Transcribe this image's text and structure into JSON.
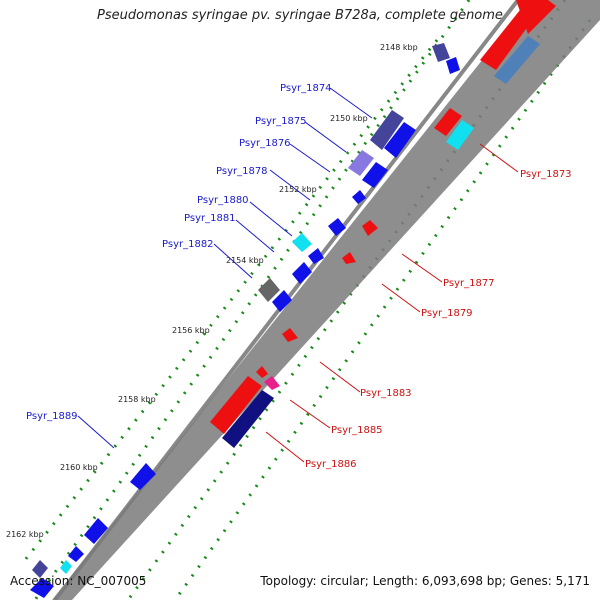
{
  "title": "Pseudomonas syringae pv. syringae B728a, complete genome",
  "footer": {
    "accession": "Accession: NC_007005",
    "summary": "Topology: circular; Length: 6,093,698 bp; Genes: 5,171"
  },
  "ticks": [
    "2148 kbp",
    "2150 kbp",
    "2152 kbp",
    "2154 kbp",
    "2156 kbp",
    "2158 kbp",
    "2160 kbp",
    "2162 kbp"
  ],
  "genes_left": [
    "Psyr_1874",
    "Psyr_1875",
    "Psyr_1876",
    "Psyr_1878",
    "Psyr_1880",
    "Psyr_1881",
    "Psyr_1882",
    "Psyr_1889"
  ],
  "genes_right": [
    "Psyr_1873",
    "Psyr_1877",
    "Psyr_1879",
    "Psyr_1883",
    "Psyr_1885",
    "Psyr_1886"
  ],
  "colors": {
    "forward_cds": "#1010e8",
    "forward_dark": "#44449a",
    "forward_light": "#8878e0",
    "cyan": "#10e0f0",
    "gray": "#666666",
    "reverse_cds": "#ee1010",
    "reverse_dark": "#101080",
    "magenta": "#e8208a",
    "steel": "#5080b8",
    "backbone": "#888888",
    "dots": "#1a8a1a",
    "label_blue": "#1a1acc",
    "label_red": "#cc1111"
  }
}
